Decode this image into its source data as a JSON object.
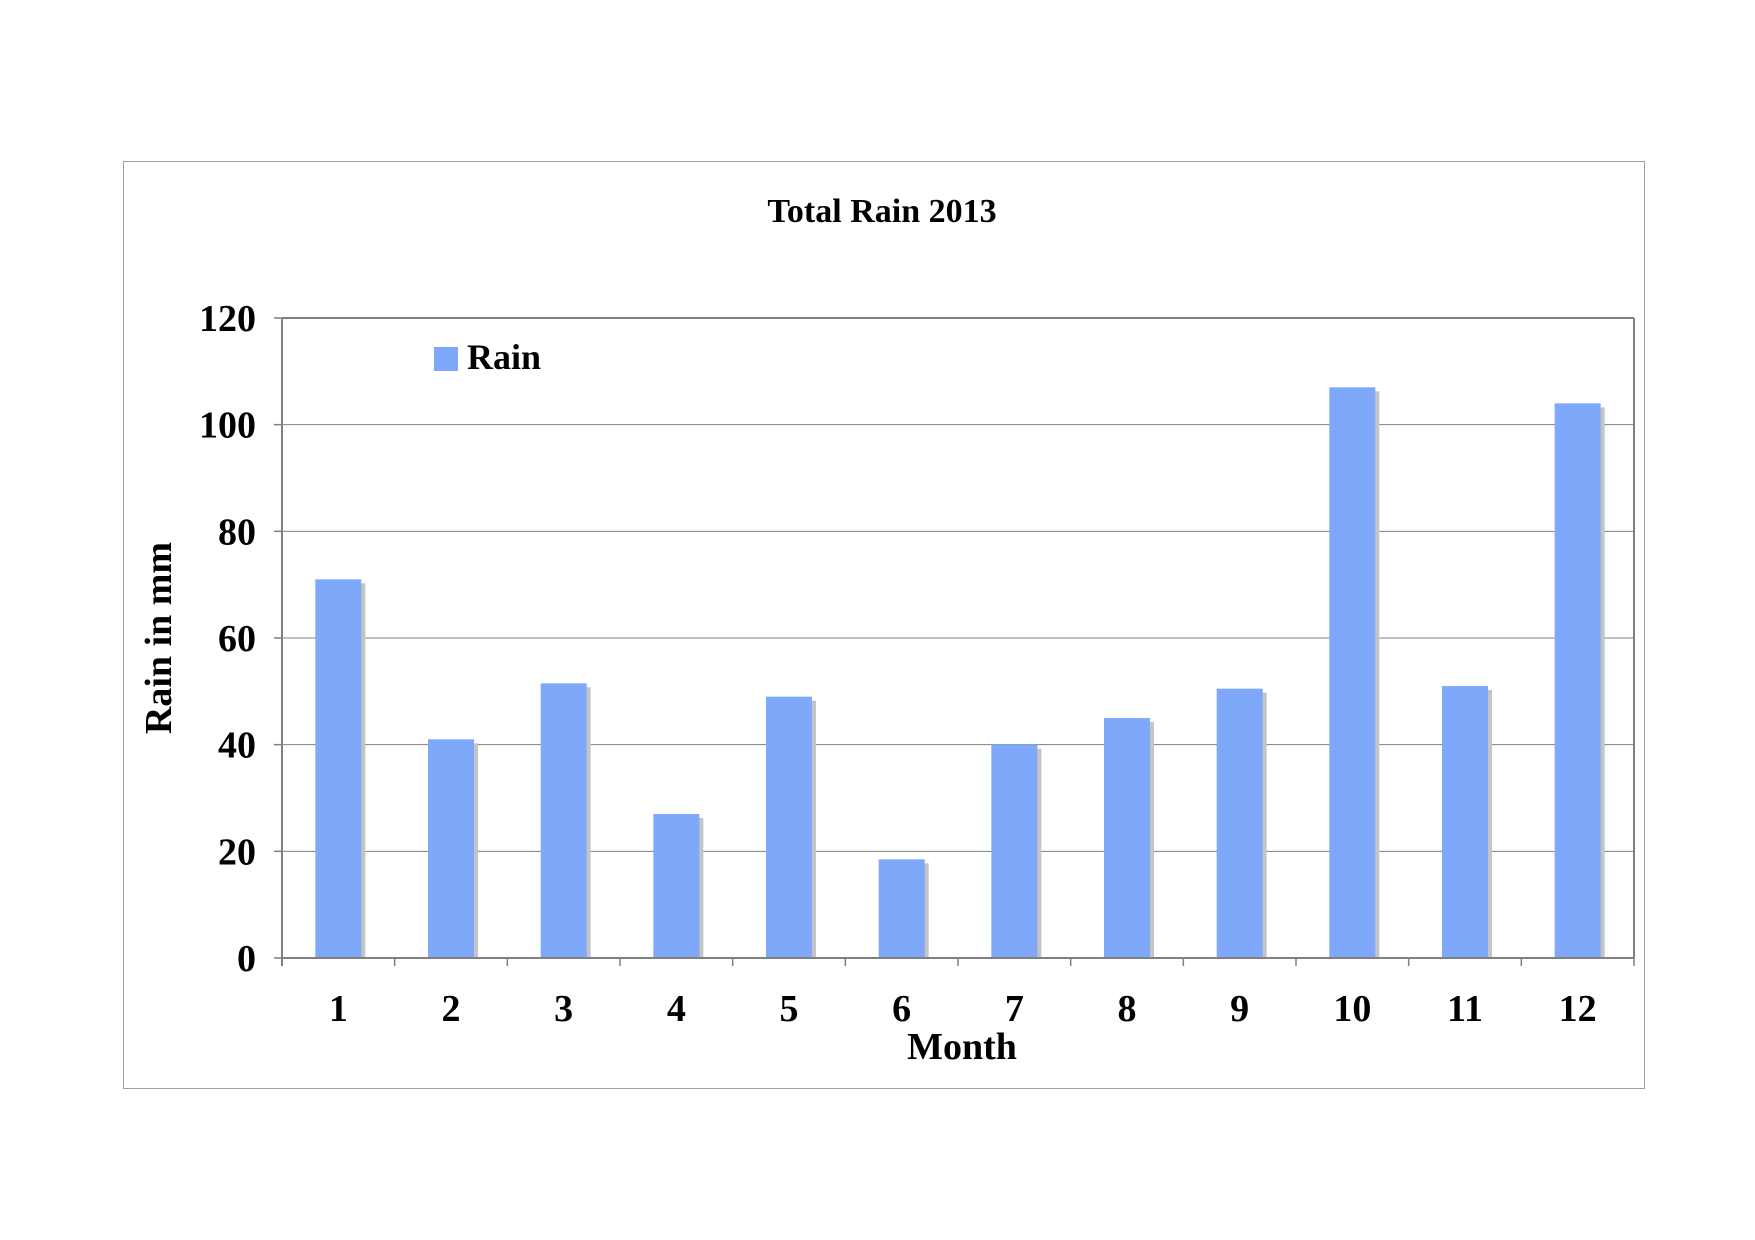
{
  "chart_data": {
    "type": "bar",
    "title": "Total Rain 2013",
    "xlabel": "Month",
    "ylabel": "Rain in mm",
    "categories": [
      "1",
      "2",
      "3",
      "4",
      "5",
      "6",
      "7",
      "8",
      "9",
      "10",
      "11",
      "12"
    ],
    "series": [
      {
        "name": "Rain",
        "values": [
          71,
          41,
          51.5,
          27,
          49,
          18.5,
          40,
          45,
          50.5,
          107,
          51,
          104
        ]
      }
    ],
    "ylim": [
      0,
      120
    ],
    "yticks": [
      "0",
      "20",
      "40",
      "60",
      "80",
      "100",
      "120"
    ],
    "grid": true,
    "legend": "top-left",
    "colors": {
      "bar": "#7FA7FA",
      "bar_shadow": "#C4C4C4",
      "grid": "#808080",
      "frame": "#A0A0A0"
    }
  }
}
